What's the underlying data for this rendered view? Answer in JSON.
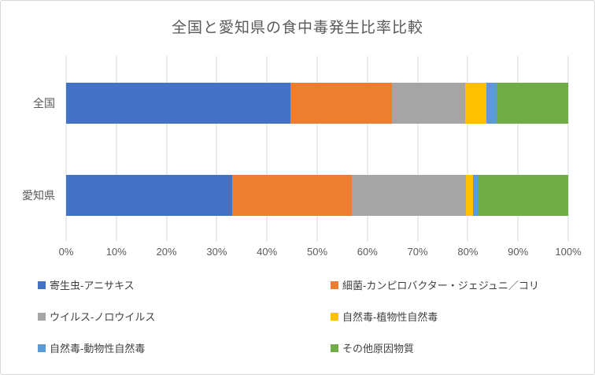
{
  "title": "全国と愛知県の食中毒発生比率比較",
  "colors": {
    "background": "#ffffff",
    "border": "#d8d8d8",
    "gridline": "#d9d9d9",
    "title_text": "#595959",
    "axis_text": "#595959",
    "legend_text": "#404040"
  },
  "chart_data": {
    "type": "bar",
    "orientation": "horizontal",
    "stacked": true,
    "title": "全国と愛知県の食中毒発生比率比較",
    "categories": [
      "全国",
      "愛知県"
    ],
    "series": [
      {
        "name": "寄生虫-アニサキス",
        "color": "#4472C4",
        "values": [
          44.6,
          33.0
        ]
      },
      {
        "name": "細菌-カンピロバクター・ジェジュニ／コリ",
        "color": "#ED7D31",
        "values": [
          20.3,
          23.9
        ]
      },
      {
        "name": "ウイルス-ノロウイルス",
        "color": "#A5A5A5",
        "values": [
          14.6,
          22.7
        ]
      },
      {
        "name": "自然毒-植物性自然毒",
        "color": "#FFC000",
        "values": [
          4.2,
          1.4
        ]
      },
      {
        "name": "自然毒-動物性自然毒",
        "color": "#5B9BD5",
        "values": [
          2.1,
          1.1
        ]
      },
      {
        "name": "その他原因物質",
        "color": "#70AD47",
        "values": [
          14.2,
          17.9
        ]
      }
    ],
    "xlabel": "",
    "ylabel": "",
    "xlim": [
      0,
      100
    ],
    "x_ticks": [
      "0%",
      "10%",
      "20%",
      "30%",
      "40%",
      "50%",
      "60%",
      "70%",
      "80%",
      "90%",
      "100%"
    ],
    "grid": "vertical",
    "legend_position": "bottom",
    "value_unit": "percent"
  }
}
